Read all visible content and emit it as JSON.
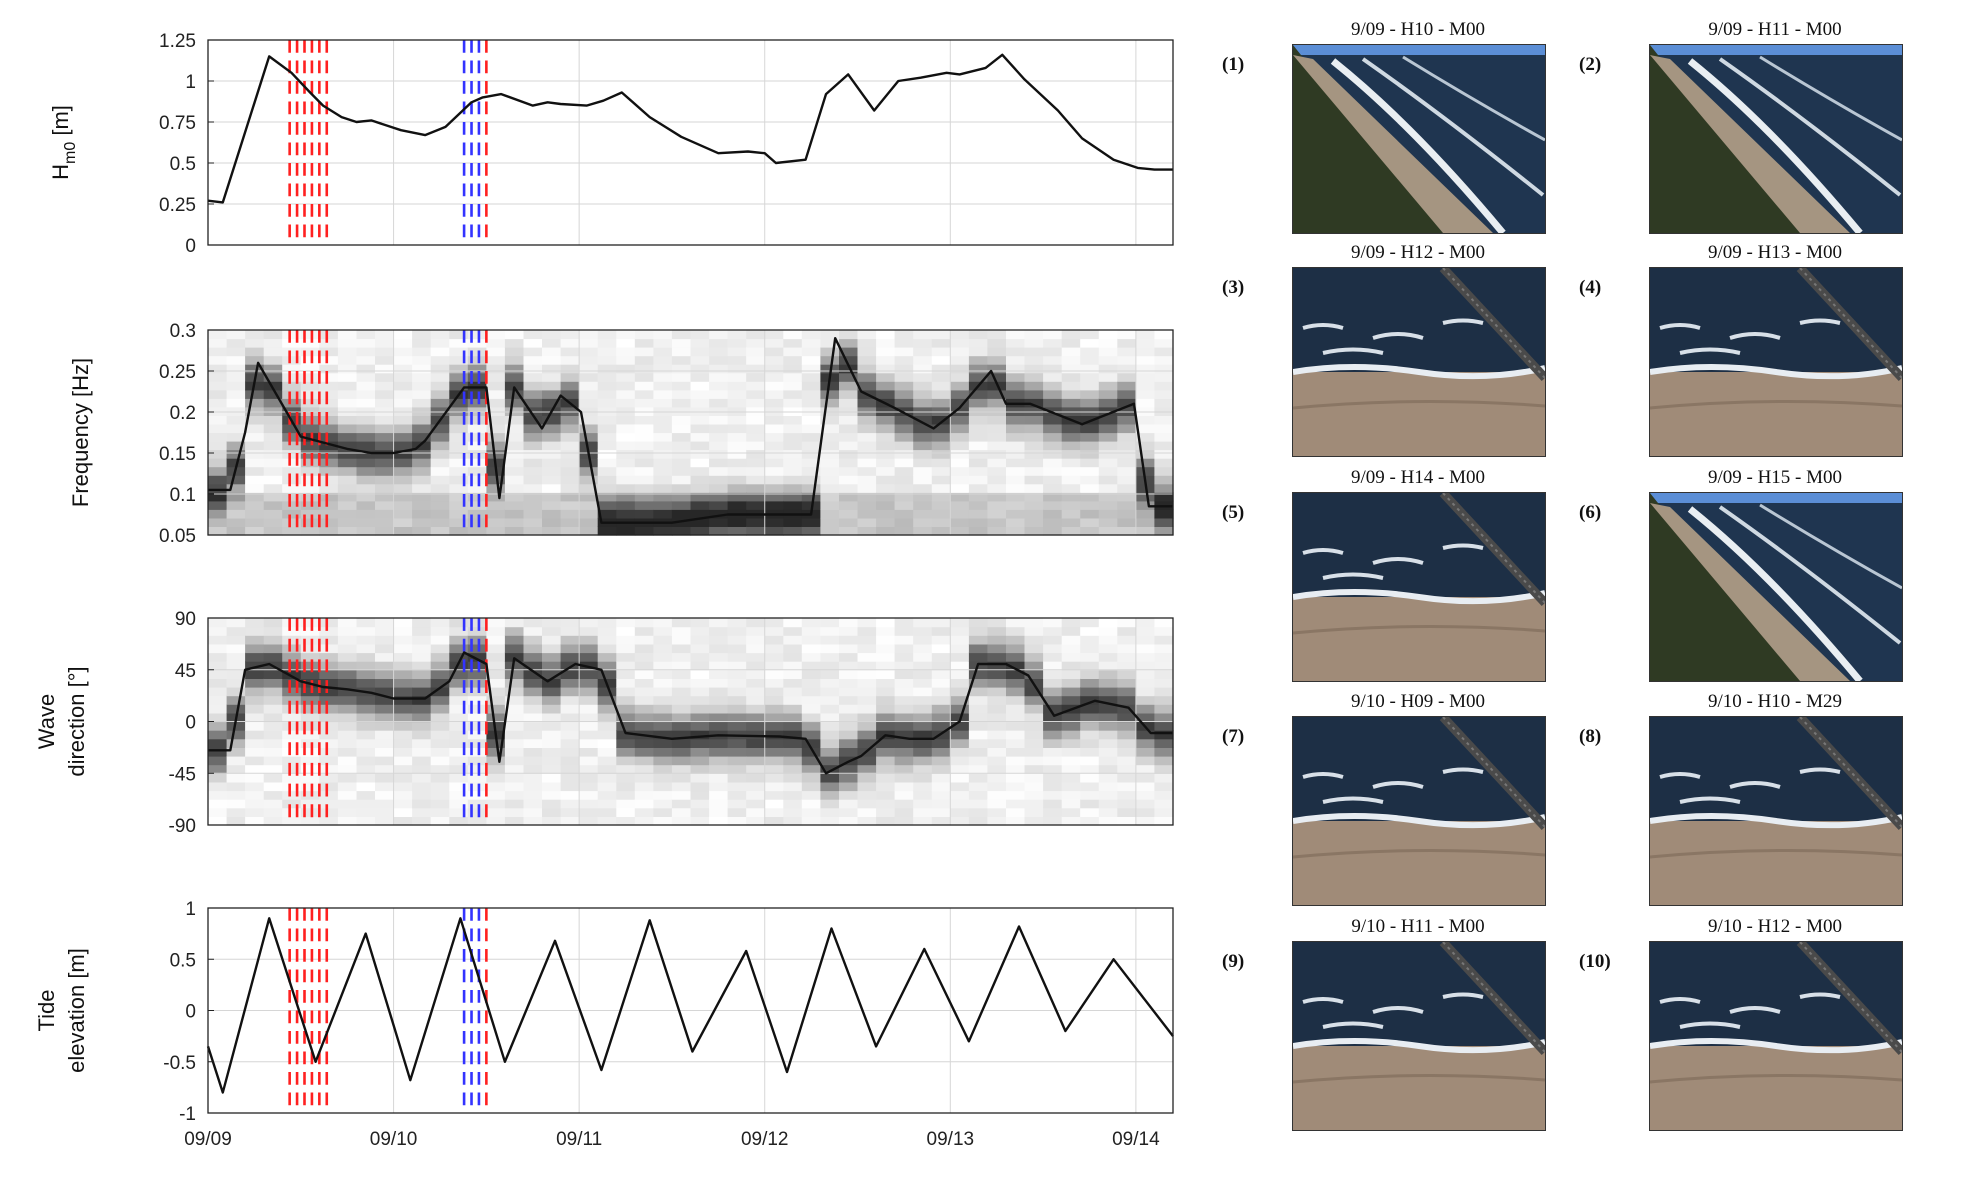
{
  "chart_data": [
    {
      "type": "line",
      "ylabel": "H",
      "ylabel_sub": "m0",
      "ylabel_unit": "[m]",
      "ylim": [
        0,
        1.25
      ],
      "yticks": [
        "1.25",
        "1",
        "0.75",
        "0.5",
        "0.25",
        "0"
      ],
      "ytick_values": [
        1.25,
        1,
        0.75,
        0.5,
        0.25,
        0
      ],
      "xlim": [
        0,
        5.2
      ],
      "grid": true,
      "series": [
        {
          "x": [
            0,
            0.08,
            0.33,
            0.45,
            0.55,
            0.62,
            0.72,
            0.8,
            0.88,
            1.04,
            1.17,
            1.28,
            1.42,
            1.48,
            1.58,
            1.75,
            1.83,
            1.9,
            2.04,
            2.13,
            2.23,
            2.38,
            2.55,
            2.75,
            2.91,
            3.0,
            3.06,
            3.22,
            3.33,
            3.45,
            3.59,
            3.72,
            3.84,
            3.98,
            4.05,
            4.19,
            4.28,
            4.4,
            4.58,
            4.71,
            4.88,
            5.01,
            5.1,
            5.2
          ],
          "y": [
            0.27,
            0.26,
            1.15,
            1.05,
            0.93,
            0.85,
            0.78,
            0.75,
            0.76,
            0.7,
            0.67,
            0.72,
            0.87,
            0.9,
            0.92,
            0.85,
            0.87,
            0.86,
            0.85,
            0.88,
            0.93,
            0.78,
            0.66,
            0.56,
            0.57,
            0.56,
            0.5,
            0.52,
            0.92,
            1.04,
            0.82,
            1.0,
            1.02,
            1.05,
            1.04,
            1.08,
            1.16,
            1.01,
            0.82,
            0.65,
            0.52,
            0.47,
            0.46,
            0.46
          ]
        }
      ],
      "markers": {
        "red": [
          0.44,
          0.48,
          0.52,
          0.56,
          0.6,
          0.64,
          1.5
        ],
        "blue": [
          1.38,
          1.42,
          1.46
        ]
      }
    },
    {
      "type": "heatmap",
      "ylabel": "Frequency [Hz]",
      "ylim": [
        0.05,
        0.3
      ],
      "yticks": [
        "0.3",
        "0.25",
        "0.2",
        "0.15",
        "0.1",
        "0.05"
      ],
      "ytick_values": [
        0.3,
        0.25,
        0.2,
        0.15,
        0.1,
        0.05
      ],
      "xlim": [
        0,
        5.2
      ],
      "grid": true,
      "series": [
        {
          "x": [
            0,
            0.12,
            0.2,
            0.27,
            0.5,
            0.75,
            0.88,
            1.0,
            1.12,
            1.17,
            1.38,
            1.5,
            1.57,
            1.65,
            1.8,
            1.9,
            2.01,
            2.12,
            2.23,
            2.32,
            2.5,
            2.8,
            3.1,
            3.25,
            3.38,
            3.52,
            3.7,
            3.91,
            4.05,
            4.22,
            4.3,
            4.43,
            4.71,
            4.99,
            5.07,
            5.2
          ],
          "y": [
            0.105,
            0.105,
            0.175,
            0.26,
            0.17,
            0.155,
            0.15,
            0.15,
            0.155,
            0.165,
            0.23,
            0.23,
            0.095,
            0.23,
            0.18,
            0.22,
            0.2,
            0.065,
            0.065,
            0.065,
            0.065,
            0.075,
            0.075,
            0.075,
            0.29,
            0.225,
            0.205,
            0.18,
            0.205,
            0.25,
            0.21,
            0.21,
            0.185,
            0.21,
            0.085,
            0.085
          ]
        }
      ],
      "markers": {
        "red": [
          0.44,
          0.48,
          0.52,
          0.56,
          0.6,
          0.64,
          1.5
        ],
        "blue": [
          1.38,
          1.42,
          1.46
        ]
      }
    },
    {
      "type": "heatmap",
      "ylabel_line1": "Wave",
      "ylabel_line2": "direction [°]",
      "ylim": [
        -90,
        90
      ],
      "yticks": [
        "90",
        "45",
        "0",
        "-45",
        "-90"
      ],
      "ytick_values": [
        90,
        45,
        0,
        -45,
        -90
      ],
      "xlim": [
        0,
        5.2
      ],
      "grid": true,
      "series": [
        {
          "x": [
            0,
            0.12,
            0.2,
            0.33,
            0.5,
            0.62,
            0.75,
            0.88,
            1.0,
            1.17,
            1.3,
            1.38,
            1.5,
            1.57,
            1.65,
            1.83,
            1.98,
            2.12,
            2.25,
            2.5,
            2.75,
            3.08,
            3.22,
            3.33,
            3.45,
            3.52,
            3.65,
            3.78,
            3.91,
            4.05,
            4.15,
            4.3,
            4.42,
            4.56,
            4.78,
            4.96,
            5.08,
            5.2
          ],
          "y": [
            -25,
            -25,
            45,
            50,
            35,
            30,
            28,
            25,
            20,
            20,
            35,
            60,
            50,
            -35,
            55,
            35,
            50,
            45,
            -10,
            -15,
            -12,
            -13,
            -15,
            -45,
            -35,
            -30,
            -12,
            -15,
            -15,
            0,
            50,
            50,
            40,
            5,
            18,
            12,
            -10,
            -10
          ]
        }
      ],
      "markers": {
        "red": [
          0.44,
          0.48,
          0.52,
          0.56,
          0.6,
          0.64,
          1.5
        ],
        "blue": [
          1.38,
          1.42,
          1.46
        ]
      }
    },
    {
      "type": "line",
      "ylabel_line1": "Tide",
      "ylabel_line2": "elevation [m]",
      "ylim": [
        -1,
        1
      ],
      "yticks": [
        "1",
        "0.5",
        "0",
        "-0.5",
        "-1"
      ],
      "ytick_values": [
        1,
        0.5,
        0,
        -0.5,
        -1
      ],
      "xlim": [
        0,
        5.2
      ],
      "xticks": [
        "09/09",
        "09/10",
        "09/11",
        "09/12",
        "09/13",
        "09/14"
      ],
      "xtick_values": [
        0,
        1,
        2,
        3,
        4,
        5
      ],
      "grid": true,
      "series": [
        {
          "x": [
            0,
            0.08,
            0.33,
            0.58,
            0.85,
            1.09,
            1.36,
            1.6,
            1.87,
            2.12,
            2.38,
            2.61,
            2.9,
            3.12,
            3.36,
            3.6,
            3.86,
            4.1,
            4.37,
            4.62,
            4.88,
            5.2
          ],
          "y": [
            -0.35,
            -0.8,
            0.9,
            -0.5,
            0.75,
            -0.68,
            0.9,
            -0.5,
            0.68,
            -0.58,
            0.88,
            -0.4,
            0.58,
            -0.6,
            0.8,
            -0.35,
            0.6,
            -0.3,
            0.82,
            -0.2,
            0.5,
            -0.25
          ]
        }
      ],
      "markers": {
        "red": [
          0.44,
          0.48,
          0.52,
          0.56,
          0.6,
          0.64,
          1.5
        ],
        "blue": [
          1.38,
          1.42,
          1.46
        ]
      }
    }
  ],
  "colors": {
    "red_marker": "#ff2020",
    "blue_marker": "#3333ff",
    "line": "#111111",
    "grid": "#d6d6d6"
  },
  "photos": [
    {
      "num": "(1)",
      "caption": "9/09 - H10 - M00",
      "scene": "coast"
    },
    {
      "num": "(2)",
      "caption": "9/09 - H11 - M00",
      "scene": "coast"
    },
    {
      "num": "(3)",
      "caption": "9/09 - H12 - M00",
      "scene": "pier"
    },
    {
      "num": "(4)",
      "caption": "9/09 - H13 - M00",
      "scene": "pier"
    },
    {
      "num": "(5)",
      "caption": "9/09 - H14 - M00",
      "scene": "pier"
    },
    {
      "num": "(6)",
      "caption": "9/09 - H15 - M00",
      "scene": "coast"
    },
    {
      "num": "(7)",
      "caption": "9/10 - H09 - M00",
      "scene": "pier"
    },
    {
      "num": "(8)",
      "caption": "9/10 - H10 - M29",
      "scene": "pier"
    },
    {
      "num": "(9)",
      "caption": "9/10 - H11 - M00",
      "scene": "pier"
    },
    {
      "num": "(10)",
      "caption": "9/10 - H12 - M00",
      "scene": "pier"
    }
  ]
}
